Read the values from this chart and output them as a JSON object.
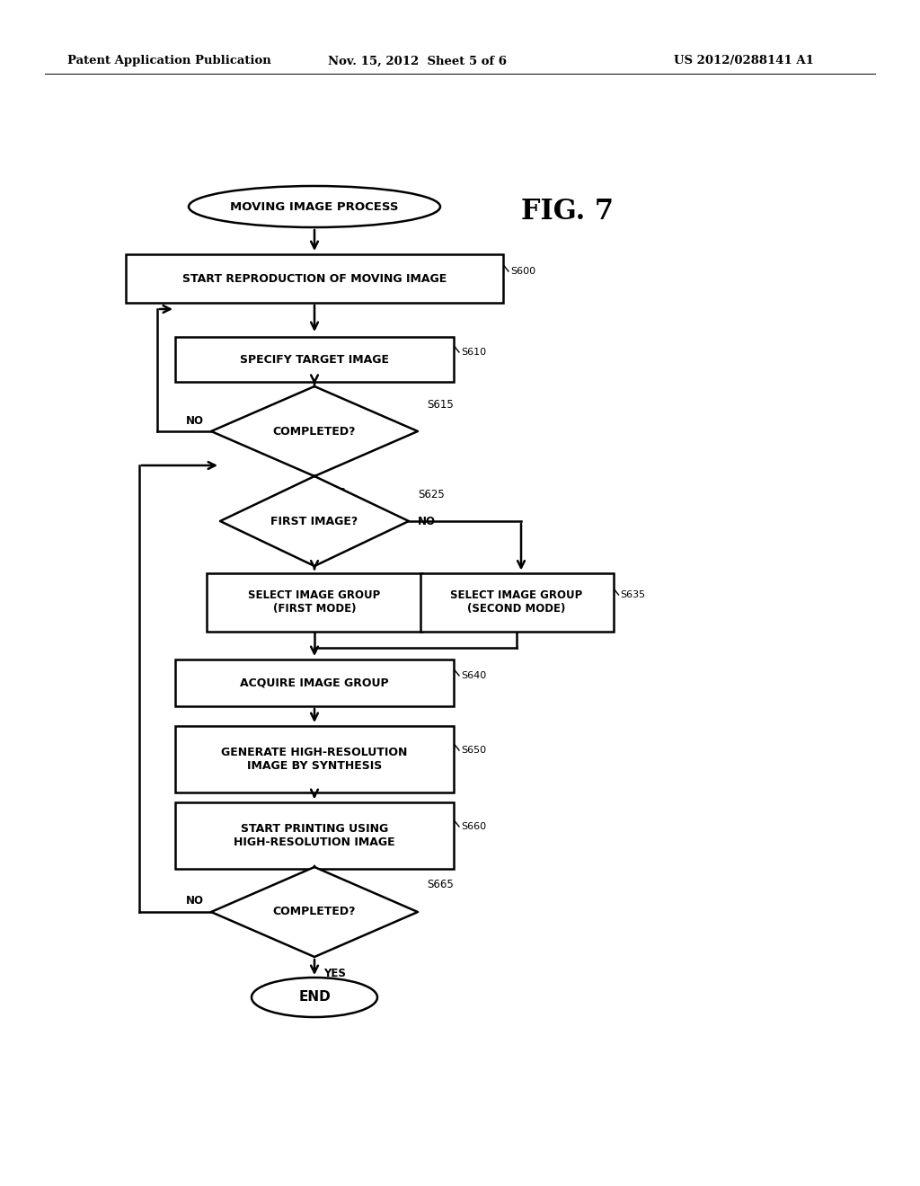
{
  "bg_color": "#ffffff",
  "header_left": "Patent Application Publication",
  "header_mid": "Nov. 15, 2012  Sheet 5 of 6",
  "header_right": "US 2012/0288141 A1",
  "fig_label": "FIG. 7"
}
